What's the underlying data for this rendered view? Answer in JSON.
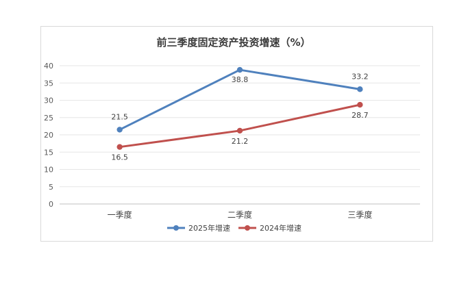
{
  "chart_data": {
    "type": "line",
    "title": "前三季度固定资产投资增速（%）",
    "categories": [
      "一季度",
      "二季度",
      "三季度"
    ],
    "ylim": [
      0,
      40
    ],
    "yticks": [
      0,
      5,
      10,
      15,
      20,
      25,
      30,
      35,
      40
    ],
    "grid": true,
    "legend_position": "bottom",
    "series": [
      {
        "name": "2025年增速",
        "values": [
          21.5,
          38.8,
          33.2
        ],
        "color": "#4f81bd",
        "labels": [
          "21.5",
          "38.8",
          "33.2"
        ]
      },
      {
        "name": "2024年增速",
        "values": [
          16.5,
          21.2,
          28.7
        ],
        "color": "#c0504d",
        "labels": [
          "16.5",
          "21.2",
          "28.7"
        ]
      }
    ]
  }
}
